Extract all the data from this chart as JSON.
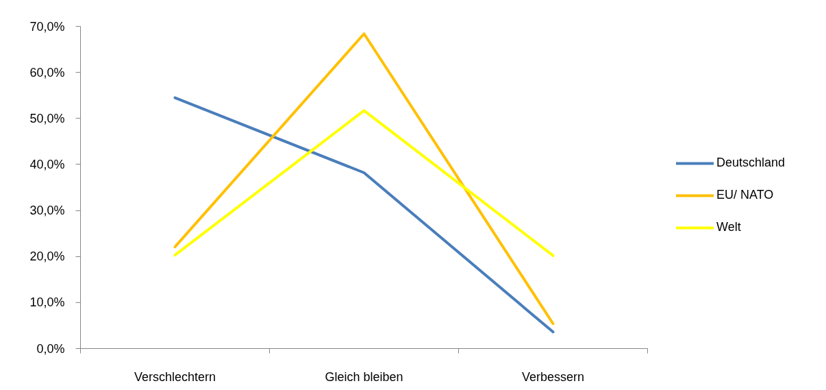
{
  "chart_data": {
    "type": "line",
    "categories": [
      "Verschlechtern",
      "Gleich bleiben",
      "Verbessern"
    ],
    "series": [
      {
        "name": "Deutschland",
        "color": "#4a7ebb",
        "values": [
          54.5,
          38.2,
          3.6
        ]
      },
      {
        "name": "EU/ NATO",
        "color": "#ffc000",
        "values": [
          22.1,
          68.4,
          5.4
        ]
      },
      {
        "name": "Welt",
        "color": "#ffff00",
        "values": [
          20.3,
          51.7,
          20.2
        ]
      }
    ],
    "ylim": [
      0,
      70
    ],
    "yticks": [
      {
        "value": 0,
        "label": "0,0%"
      },
      {
        "value": 10,
        "label": "10,0%"
      },
      {
        "value": 20,
        "label": "20,0%"
      },
      {
        "value": 30,
        "label": "30,0%"
      },
      {
        "value": 40,
        "label": "40,0%"
      },
      {
        "value": 50,
        "label": "50,0%"
      },
      {
        "value": 60,
        "label": "60,0%"
      },
      {
        "value": 70,
        "label": "70,0%"
      }
    ],
    "grid": false,
    "legend": "right"
  }
}
